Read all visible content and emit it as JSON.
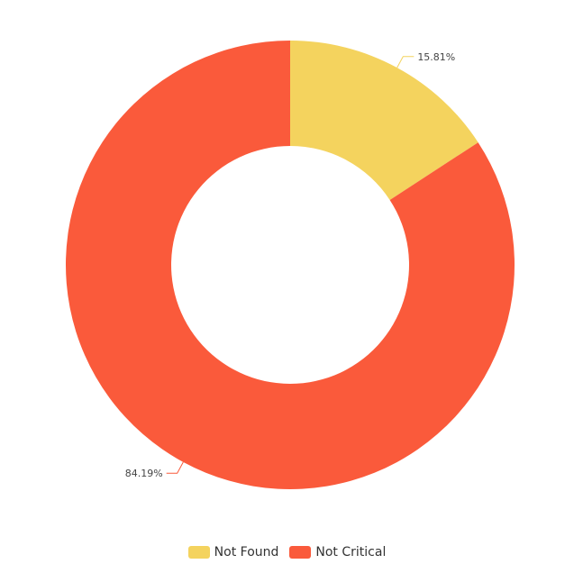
{
  "chart_data": {
    "type": "pie",
    "title": "",
    "donut": true,
    "categories": [
      "Not Found",
      "Not Critical"
    ],
    "values": [
      15.81,
      84.19
    ],
    "labels": [
      "15.81%",
      "84.19%"
    ],
    "colors": [
      "#f4d35e",
      "#fa5a3b"
    ],
    "legend_position": "bottom-center"
  },
  "legend": {
    "items": [
      {
        "label": "Not Found",
        "color": "#f4d35e"
      },
      {
        "label": "Not Critical",
        "color": "#fa5a3b"
      }
    ]
  }
}
